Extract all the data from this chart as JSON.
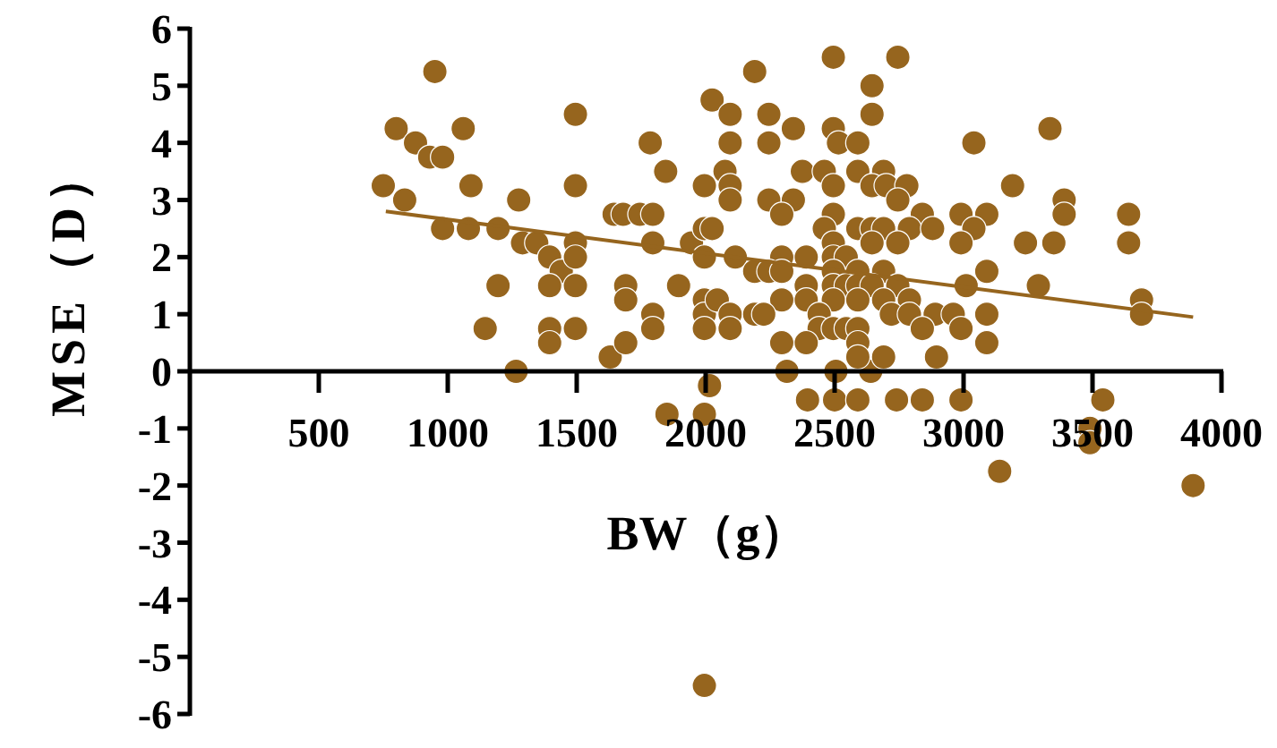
{
  "chart_data": {
    "type": "scatter",
    "xlabel": "BW（g）",
    "ylabel": "MSE（D）",
    "xlim": [
      0,
      4000
    ],
    "ylim": [
      -6,
      6
    ],
    "xticks": [
      500,
      1000,
      1500,
      2000,
      2500,
      3000,
      3500,
      4000
    ],
    "yticks": [
      -6,
      -5,
      -4,
      -3,
      -2,
      -1,
      0,
      1,
      2,
      3,
      4,
      5,
      6
    ],
    "grid": false,
    "marker": "circle",
    "series": [
      {
        "color": "#96651e",
        "x": [
          750,
          800,
          875,
          833,
          950,
          930,
          980,
          980,
          1060,
          1090,
          1080,
          1195,
          1195,
          1145,
          1265,
          1275,
          1290,
          1345,
          1395,
          1440,
          1495,
          1495,
          1395,
          1495,
          1395,
          1395,
          1495,
          1495,
          1495,
          1630,
          1645,
          1680,
          1745,
          1795,
          1690,
          1690,
          1690,
          1795,
          1795,
          1795,
          1785,
          1845,
          1895,
          1945,
          1995,
          1995,
          2025,
          1995,
          1995,
          1995,
          1995,
          2025,
          2015,
          1850,
          1995,
          1995,
          2315,
          2505,
          2640,
          2395,
          2500,
          2590,
          2740,
          2840,
          2990,
          3140,
          3490,
          3490,
          3540,
          3890,
          2495,
          2745,
          2190,
          2645,
          2095,
          2245,
          2645,
          2340,
          2495,
          3335,
          2095,
          2245,
          2515,
          2590,
          3040,
          2075,
          2375,
          2460,
          2590,
          2690,
          2095,
          2495,
          2645,
          2700,
          2780,
          3190,
          2095,
          2245,
          2340,
          2745,
          3390,
          2295,
          2495,
          2840,
          2990,
          3090,
          3390,
          3640,
          2460,
          2590,
          2645,
          2690,
          2790,
          2880,
          3040,
          2495,
          2645,
          2745,
          2990,
          3240,
          3350,
          3640,
          2115,
          2295,
          2390,
          2495,
          2545,
          2190,
          2245,
          2295,
          2495,
          2590,
          2690,
          3090,
          2390,
          2495,
          2545,
          2590,
          2645,
          2745,
          3010,
          3290,
          2045,
          2295,
          2390,
          2495,
          2590,
          2690,
          2790,
          3690,
          2095,
          2190,
          2225,
          2440,
          2720,
          2790,
          2890,
          2960,
          3090,
          3690,
          2095,
          2440,
          2495,
          2545,
          2590,
          2840,
          2990,
          2295,
          2390,
          2590,
          3090,
          2590,
          2690,
          2895
        ],
        "values": [
          3.25,
          4.25,
          4.0,
          3.0,
          5.25,
          3.75,
          3.75,
          2.5,
          4.25,
          3.25,
          2.5,
          2.5,
          1.5,
          0.75,
          0,
          3.0,
          2.25,
          2.25,
          2.0,
          1.75,
          2.25,
          2.0,
          1.5,
          1.5,
          0.75,
          0.5,
          0.75,
          4.5,
          3.25,
          0.25,
          2.75,
          2.75,
          2.75,
          2.75,
          1.5,
          1.25,
          0.5,
          2.25,
          1.0,
          0.75,
          4.0,
          3.5,
          1.5,
          2.25,
          3.25,
          2.5,
          2.5,
          2.0,
          1.25,
          1.0,
          0.75,
          4.75,
          -0.25,
          -0.75,
          -0.75,
          -5.5,
          0,
          0,
          0,
          -0.5,
          -0.5,
          -0.5,
          -0.5,
          -0.5,
          -0.5,
          -1.75,
          -1.0,
          -1.25,
          -0.5,
          -2.0,
          5.5,
          5.5,
          5.25,
          5.0,
          4.5,
          4.5,
          4.5,
          4.25,
          4.25,
          4.25,
          4.0,
          4.0,
          4.0,
          4.0,
          4.0,
          3.5,
          3.5,
          3.5,
          3.5,
          3.5,
          3.25,
          3.25,
          3.25,
          3.25,
          3.25,
          3.25,
          3.0,
          3.0,
          3.0,
          3.0,
          3.0,
          2.75,
          2.75,
          2.75,
          2.75,
          2.75,
          2.75,
          2.75,
          2.5,
          2.5,
          2.5,
          2.5,
          2.5,
          2.5,
          2.5,
          2.25,
          2.25,
          2.25,
          2.25,
          2.25,
          2.25,
          2.25,
          2.0,
          2.0,
          2.0,
          2.0,
          2.0,
          1.75,
          1.75,
          1.75,
          1.75,
          1.75,
          1.75,
          1.75,
          1.5,
          1.5,
          1.5,
          1.5,
          1.5,
          1.5,
          1.5,
          1.5,
          1.25,
          1.25,
          1.25,
          1.25,
          1.25,
          1.25,
          1.25,
          1.25,
          1.0,
          1.0,
          1.0,
          1.0,
          1.0,
          1.0,
          1.0,
          1.0,
          1.0,
          1.0,
          0.75,
          0.75,
          0.75,
          0.75,
          0.75,
          0.75,
          0.75,
          0.5,
          0.5,
          0.5,
          0.5,
          0.25,
          0.25,
          0.25
        ]
      },
      {
        "type": "line",
        "marker": "none",
        "color": "#96651e",
        "x": [
          760,
          3890
        ],
        "values": [
          2.8,
          0.95
        ]
      }
    ]
  }
}
